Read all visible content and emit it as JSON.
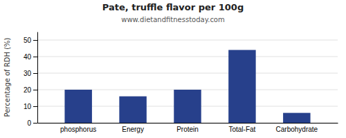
{
  "chart_data": {
    "type": "bar",
    "title": "Pate, truffle flavor per 100g",
    "subtitle": "www.dietandfitnesstoday.com",
    "ylabel": "Percentage of RDH (%)",
    "categories": [
      "phosphorus",
      "Energy",
      "Protein",
      "Total-Fat",
      "Carbohydrate"
    ],
    "values": [
      20,
      16,
      20,
      44,
      6
    ],
    "color": "#27408b",
    "ylim": [
      0,
      55
    ],
    "yticks": [
      0,
      10,
      20,
      30,
      40,
      50
    ],
    "grid": true
  }
}
